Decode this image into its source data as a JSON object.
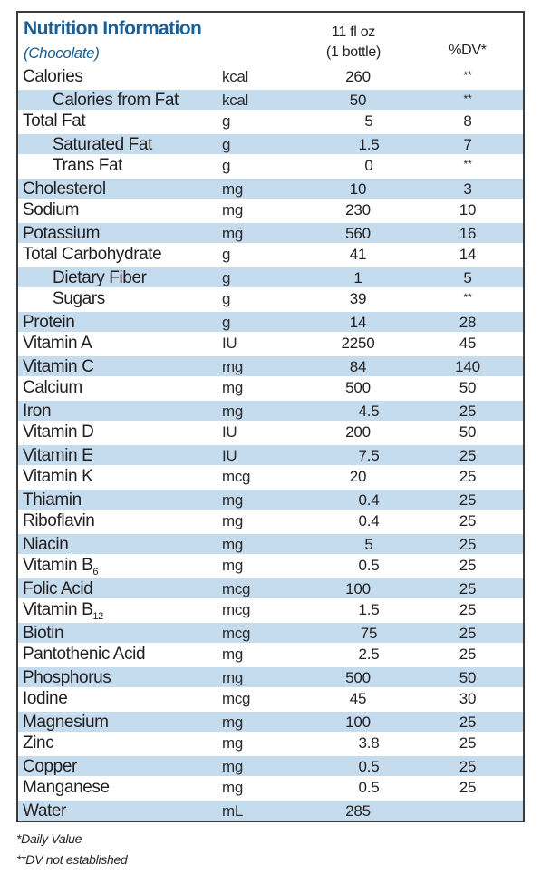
{
  "header": {
    "title": "Nutrition Information",
    "subtitle": "(Chocolate)",
    "serving_line1": "11 fl oz",
    "serving_line2": "(1 bottle)",
    "dv_label": "%DV*"
  },
  "colors": {
    "title": "#1a5e94",
    "row_shade": "#c5dcef",
    "border": "#3c3c3c"
  },
  "rows": [
    {
      "name": "Calories",
      "unit": "kcal",
      "amount": "260",
      "dv": "**",
      "indent": false,
      "shaded": false,
      "offset": false
    },
    {
      "name": "Calories from Fat",
      "unit": "kcal",
      "amount": "50",
      "dv": "**",
      "indent": true,
      "shaded": true,
      "offset": false
    },
    {
      "name": "Total Fat",
      "unit": "g",
      "amount": "5",
      "dv": "8",
      "indent": false,
      "shaded": false,
      "offset": true
    },
    {
      "name": "Saturated Fat",
      "unit": "g",
      "amount": "1.5",
      "dv": "7",
      "indent": true,
      "shaded": true,
      "offset": true
    },
    {
      "name": "Trans Fat",
      "unit": "g",
      "amount": "0",
      "dv": "**",
      "indent": true,
      "shaded": false,
      "offset": true
    },
    {
      "name": "Cholesterol",
      "unit": "mg",
      "amount": "10",
      "dv": "3",
      "indent": false,
      "shaded": true,
      "offset": false
    },
    {
      "name": "Sodium",
      "unit": "mg",
      "amount": "230",
      "dv": "10",
      "indent": false,
      "shaded": false,
      "offset": false
    },
    {
      "name": "Potassium",
      "unit": "mg",
      "amount": "560",
      "dv": "16",
      "indent": false,
      "shaded": true,
      "offset": false
    },
    {
      "name": "Total Carbohydrate",
      "unit": "g",
      "amount": "41",
      "dv": "14",
      "indent": false,
      "shaded": false,
      "offset": false
    },
    {
      "name": "Dietary Fiber",
      "unit": "g",
      "amount": "1",
      "dv": "5",
      "indent": true,
      "shaded": true,
      "offset": false
    },
    {
      "name": "Sugars",
      "unit": "g",
      "amount": "39",
      "dv": "**",
      "indent": true,
      "shaded": false,
      "offset": false
    },
    {
      "name": "Protein",
      "unit": "g",
      "amount": "14",
      "dv": "28",
      "indent": false,
      "shaded": true,
      "offset": false
    },
    {
      "name": "Vitamin A",
      "unit": "IU",
      "amount": "2250",
      "dv": "45",
      "indent": false,
      "shaded": false,
      "offset": false
    },
    {
      "name": "Vitamin C",
      "unit": "mg",
      "amount": "84",
      "dv": "140",
      "indent": false,
      "shaded": true,
      "offset": false
    },
    {
      "name": "Calcium",
      "unit": "mg",
      "amount": "500",
      "dv": "50",
      "indent": false,
      "shaded": false,
      "offset": false
    },
    {
      "name": "Iron",
      "unit": "mg",
      "amount": "4.5",
      "dv": "25",
      "indent": false,
      "shaded": true,
      "offset": true
    },
    {
      "name": "Vitamin D",
      "unit": "IU",
      "amount": "200",
      "dv": "50",
      "indent": false,
      "shaded": false,
      "offset": false
    },
    {
      "name": "Vitamin E",
      "unit": "IU",
      "amount": "7.5",
      "dv": "25",
      "indent": false,
      "shaded": true,
      "offset": true
    },
    {
      "name": "Vitamin K",
      "unit": "mcg",
      "amount": "20",
      "dv": "25",
      "indent": false,
      "shaded": false,
      "offset": false
    },
    {
      "name": "Thiamin",
      "unit": "mg",
      "amount": "0.4",
      "dv": "25",
      "indent": false,
      "shaded": true,
      "offset": true
    },
    {
      "name": "Riboflavin",
      "unit": "mg",
      "amount": "0.4",
      "dv": "25",
      "indent": false,
      "shaded": false,
      "offset": true
    },
    {
      "name": "Niacin",
      "unit": "mg",
      "amount": "5",
      "dv": "25",
      "indent": false,
      "shaded": true,
      "offset": true
    },
    {
      "name": "Vitamin B",
      "sub": "6",
      "unit": "mg",
      "amount": "0.5",
      "dv": "25",
      "indent": false,
      "shaded": false,
      "offset": true
    },
    {
      "name": "Folic Acid",
      "unit": "mcg",
      "amount": "100",
      "dv": "25",
      "indent": false,
      "shaded": true,
      "offset": false
    },
    {
      "name": "Vitamin B",
      "sub": "12",
      "unit": "mcg",
      "amount": "1.5",
      "dv": "25",
      "indent": false,
      "shaded": false,
      "offset": true
    },
    {
      "name": "Biotin",
      "unit": "mcg",
      "amount": "75",
      "dv": "25",
      "indent": false,
      "shaded": true,
      "offset": true
    },
    {
      "name": "Pantothenic Acid",
      "unit": "mg",
      "amount": "2.5",
      "dv": "25",
      "indent": false,
      "shaded": false,
      "offset": true
    },
    {
      "name": "Phosphorus",
      "unit": "mg",
      "amount": "500",
      "dv": "50",
      "indent": false,
      "shaded": true,
      "offset": false
    },
    {
      "name": "Iodine",
      "unit": "mcg",
      "amount": "45",
      "dv": "30",
      "indent": false,
      "shaded": false,
      "offset": false
    },
    {
      "name": "Magnesium",
      "unit": "mg",
      "amount": "100",
      "dv": "25",
      "indent": false,
      "shaded": true,
      "offset": false
    },
    {
      "name": "Zinc",
      "unit": "mg",
      "amount": "3.8",
      "dv": "25",
      "indent": false,
      "shaded": false,
      "offset": true
    },
    {
      "name": "Copper",
      "unit": "mg",
      "amount": "0.5",
      "dv": "25",
      "indent": false,
      "shaded": true,
      "offset": true
    },
    {
      "name": "Manganese",
      "unit": "mg",
      "amount": "0.5",
      "dv": "25",
      "indent": false,
      "shaded": false,
      "offset": true
    },
    {
      "name": "Water",
      "unit": "mL",
      "amount": "285",
      "dv": "",
      "indent": false,
      "shaded": true,
      "offset": false
    }
  ],
  "footnotes": {
    "daily_value": "*Daily Value",
    "not_established": "**DV not established"
  }
}
